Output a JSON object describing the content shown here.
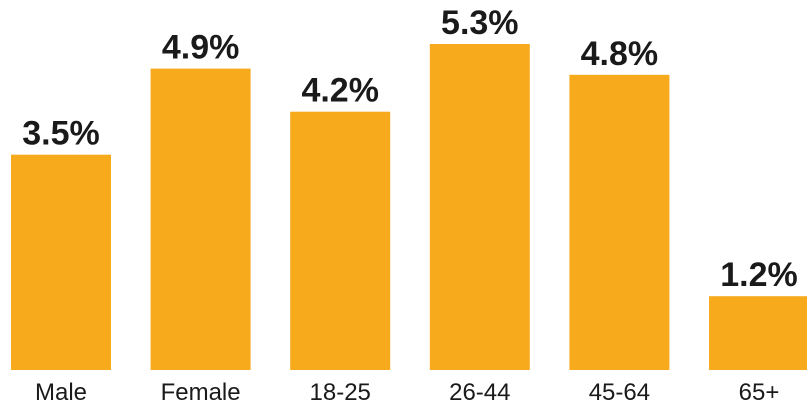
{
  "chart_data": {
    "type": "bar",
    "categories": [
      "Male",
      "Female",
      "18-25",
      "26-44",
      "45-64",
      "65+"
    ],
    "values": [
      3.5,
      4.9,
      4.2,
      5.3,
      4.8,
      1.2
    ],
    "value_labels": [
      "3.5%",
      "4.9%",
      "4.2%",
      "5.3%",
      "4.8%",
      "1.2%"
    ],
    "title": "",
    "xlabel": "",
    "ylabel": "",
    "ylim": [
      0,
      5.3
    ],
    "grid": false,
    "bar_color": "#F7AA1C",
    "text_color": "#1a1a1a"
  }
}
